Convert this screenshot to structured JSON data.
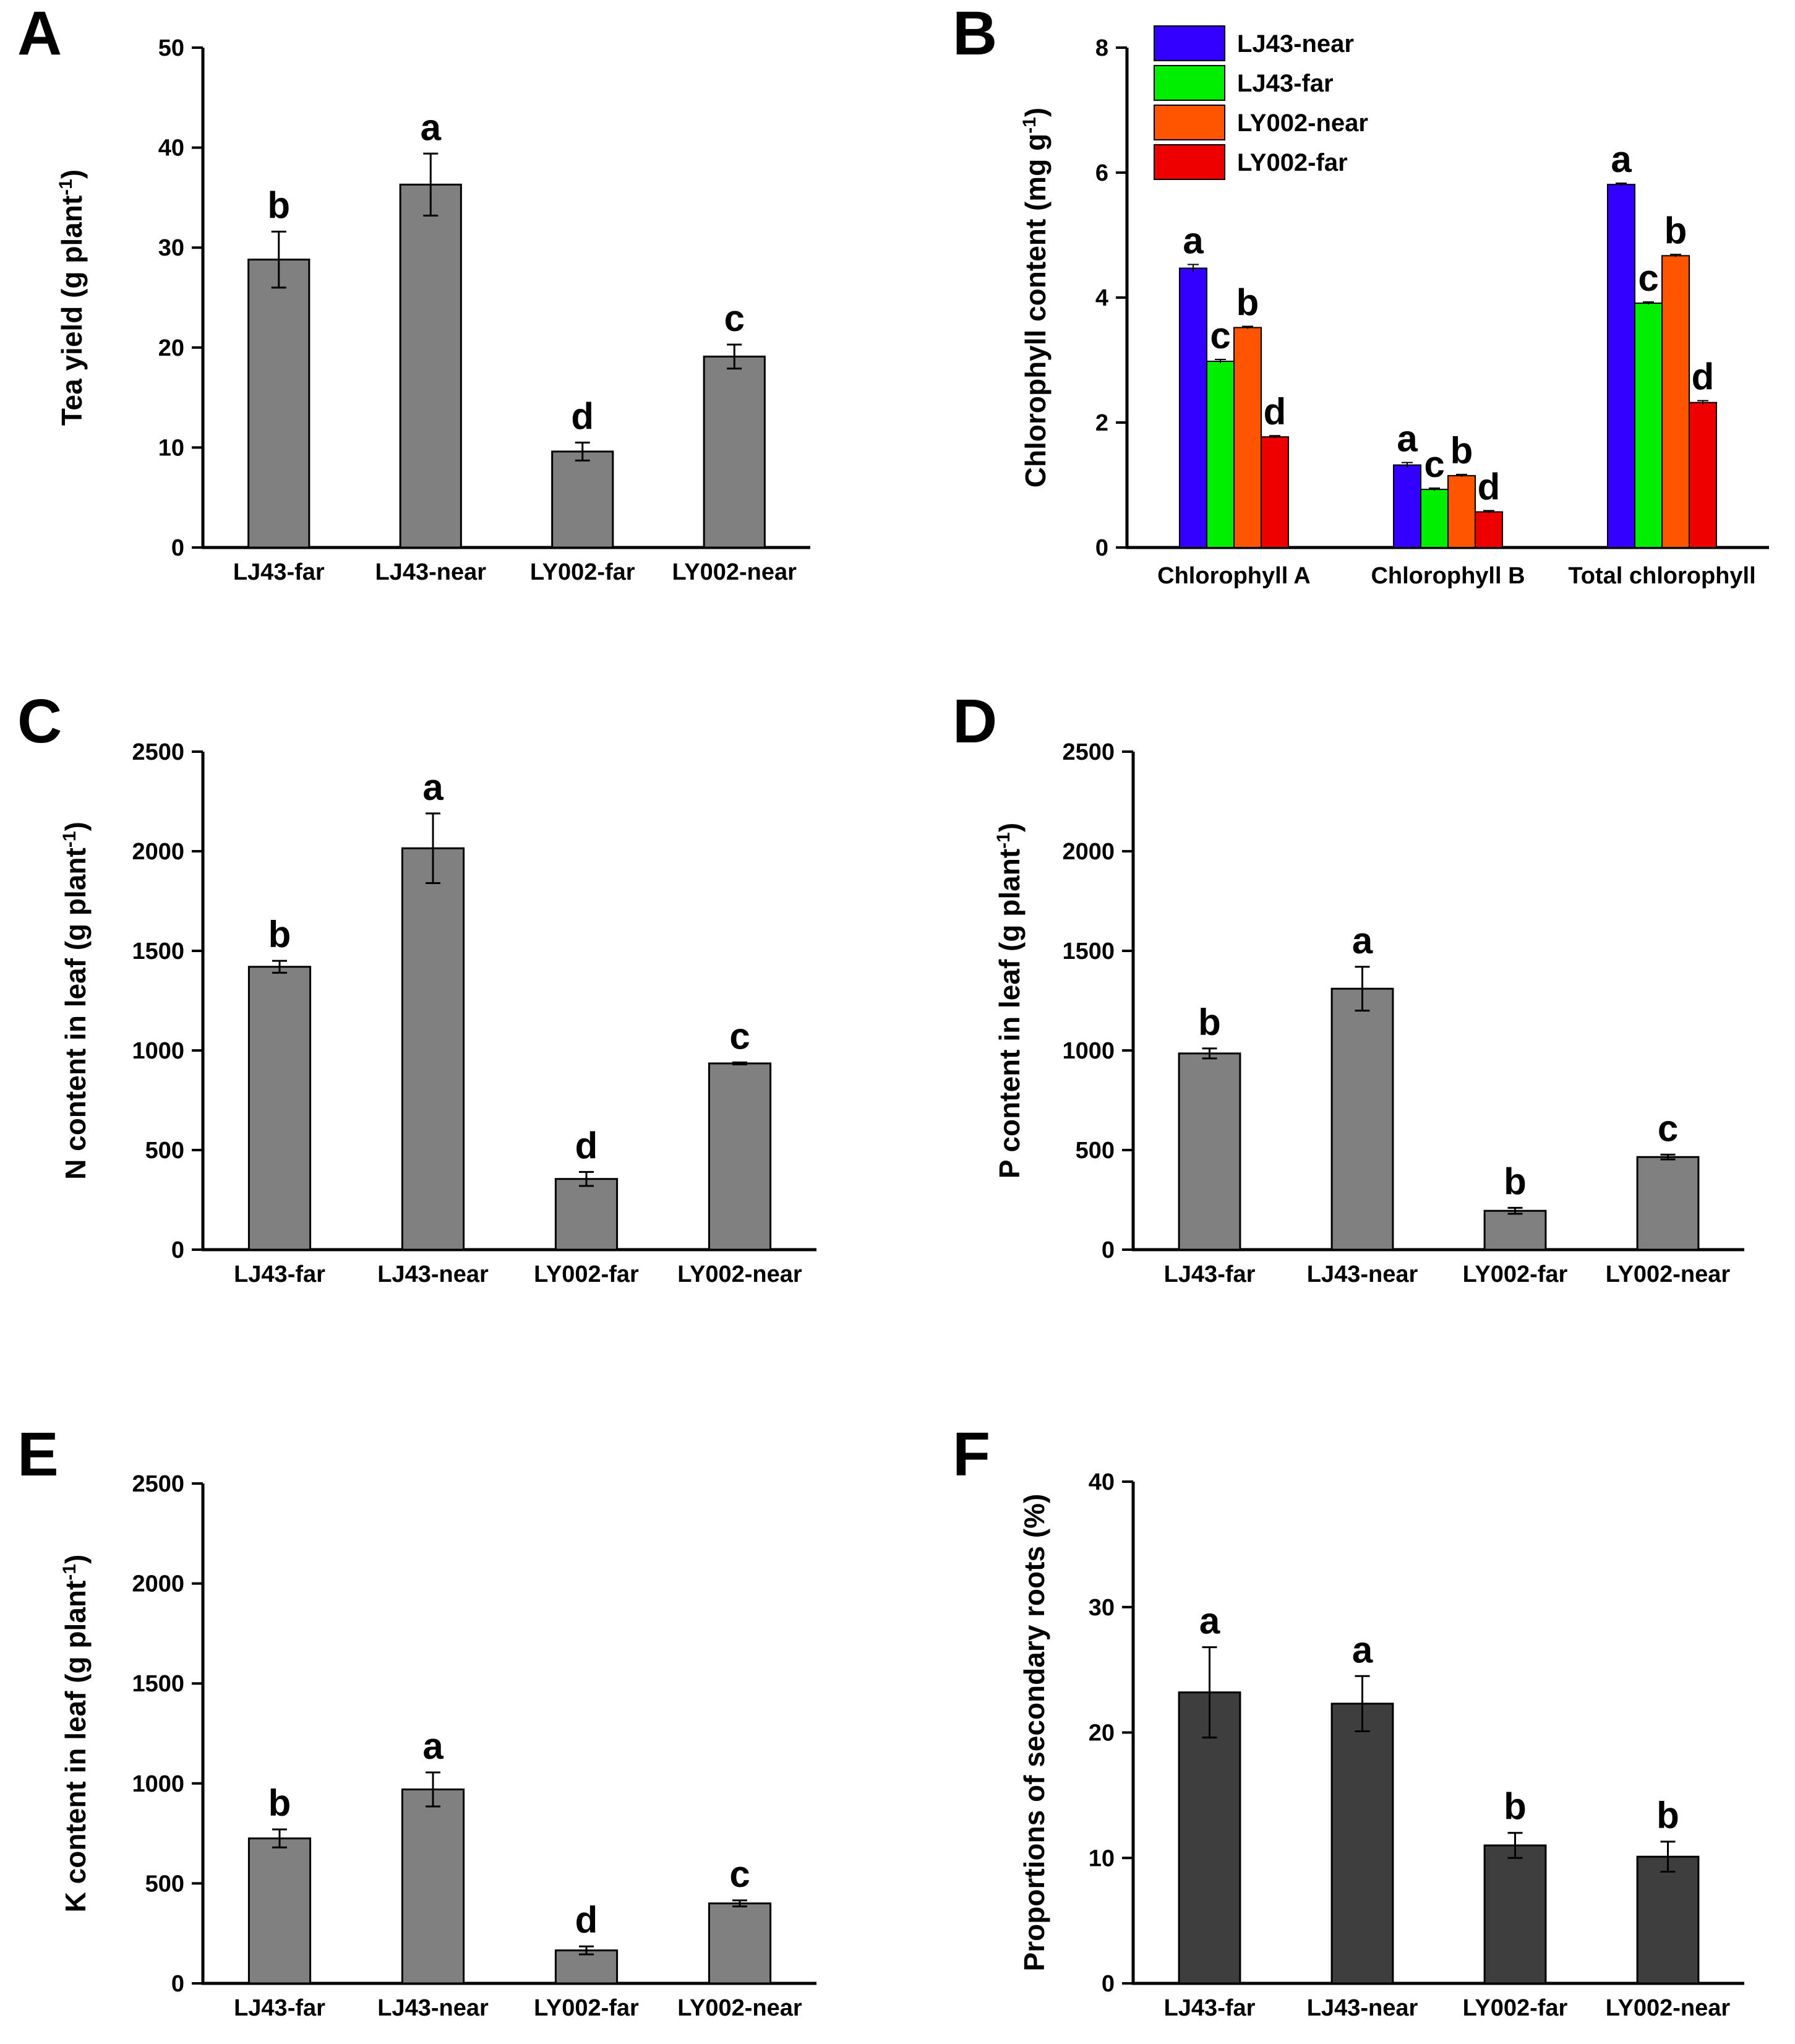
{
  "chart_data": [
    {
      "id": "A",
      "type": "bar",
      "panel_label": "A",
      "ylabel": "Tea yield (g plant",
      "ylabel_sup": "-1",
      "ylabel_close": ")",
      "ylim": [
        0,
        50
      ],
      "yticks": [
        0,
        10,
        20,
        30,
        40,
        50
      ],
      "bar_color": "#808080",
      "categories": [
        "LJ43-far",
        "LJ43-near",
        "LY002-far",
        "LY002-near"
      ],
      "values": [
        28.8,
        36.3,
        9.6,
        19.1
      ],
      "errors": [
        2.8,
        3.1,
        0.9,
        1.2
      ],
      "sig_letters": [
        "b",
        "a",
        "d",
        "c"
      ]
    },
    {
      "id": "B",
      "type": "bar",
      "panel_label": "B",
      "ylabel": "Chlorophyll content (mg g",
      "ylabel_sup": "-1",
      "ylabel_close": ")",
      "ylim": [
        0,
        8
      ],
      "yticks": [
        0,
        2,
        4,
        6,
        8
      ],
      "categories": [
        "Chlorophyll A",
        "Chlorophyll B",
        "Total chlorophyll"
      ],
      "legend": "top-left",
      "series": [
        {
          "name": "LJ43-near",
          "color": "#3300ff",
          "values": [
            4.47,
            1.32,
            5.81
          ],
          "errors": [
            0.06,
            0.04,
            0.02
          ],
          "sig_letters": [
            "a",
            "a",
            "a"
          ]
        },
        {
          "name": "LJ43-far",
          "color": "#00ee00",
          "values": [
            2.98,
            0.93,
            3.91
          ],
          "errors": [
            0.03,
            0.02,
            0.02
          ],
          "sig_letters": [
            "c",
            "c",
            "c"
          ]
        },
        {
          "name": "LY002-near",
          "color": "#ff5500",
          "values": [
            3.52,
            1.15,
            4.67
          ],
          "errors": [
            0.02,
            0.02,
            0.02
          ],
          "sig_letters": [
            "b",
            "b",
            "b"
          ]
        },
        {
          "name": "LY002-far",
          "color": "#ee0000",
          "values": [
            1.77,
            0.57,
            2.32
          ],
          "errors": [
            0.02,
            0.02,
            0.03
          ],
          "sig_letters": [
            "d",
            "d",
            "d"
          ]
        }
      ]
    },
    {
      "id": "C",
      "type": "bar",
      "panel_label": "C",
      "ylabel": "N content in leaf (g plant",
      "ylabel_sup": "-1",
      "ylabel_close": ")",
      "ylim": [
        0,
        2500
      ],
      "yticks": [
        0,
        500,
        1000,
        1500,
        2000,
        2500
      ],
      "bar_color": "#808080",
      "categories": [
        "LJ43-far",
        "LJ43-near",
        "LY002-far",
        "LY002-near"
      ],
      "values": [
        1420,
        2015,
        355,
        935
      ],
      "errors": [
        30,
        175,
        35,
        5
      ],
      "sig_letters": [
        "b",
        "a",
        "d",
        "c"
      ]
    },
    {
      "id": "D",
      "type": "bar",
      "panel_label": "D",
      "ylabel": "P content in leaf (g plant",
      "ylabel_sup": "-1",
      "ylabel_close": ")",
      "ylim": [
        0,
        2500
      ],
      "yticks": [
        0,
        500,
        1000,
        1500,
        2000,
        2500
      ],
      "bar_color": "#808080",
      "categories": [
        "LJ43-far",
        "LJ43-near",
        "LY002-far",
        "LY002-near"
      ],
      "values": [
        985,
        1310,
        195,
        465
      ],
      "errors": [
        25,
        110,
        15,
        12
      ],
      "sig_letters": [
        "b",
        "a",
        "b",
        "c"
      ]
    },
    {
      "id": "E",
      "type": "bar",
      "panel_label": "E",
      "ylabel": "K content in leaf (g plant",
      "ylabel_sup": "-1",
      "ylabel_close": ")",
      "ylim": [
        0,
        2500
      ],
      "yticks": [
        0,
        500,
        1000,
        1500,
        2000,
        2500
      ],
      "bar_color": "#808080",
      "categories": [
        "LJ43-far",
        "LJ43-near",
        "LY002-far",
        "LY002-near"
      ],
      "values": [
        725,
        970,
        165,
        400
      ],
      "errors": [
        45,
        85,
        20,
        15
      ],
      "sig_letters": [
        "b",
        "a",
        "d",
        "c"
      ]
    },
    {
      "id": "F",
      "type": "bar",
      "panel_label": "F",
      "ylabel": "Proportions of secondary roots (%)",
      "ylabel_sup": "",
      "ylabel_close": "",
      "ylim": [
        0,
        40
      ],
      "yticks": [
        0,
        10,
        20,
        30,
        40
      ],
      "bar_color": "#3e3e3e",
      "categories": [
        "LJ43-far",
        "LJ43-near",
        "LY002-far",
        "LY002-near"
      ],
      "values": [
        23.2,
        22.3,
        11.0,
        10.1
      ],
      "errors": [
        3.6,
        2.2,
        1.0,
        1.2
      ],
      "sig_letters": [
        "a",
        "a",
        "b",
        "b"
      ]
    }
  ]
}
